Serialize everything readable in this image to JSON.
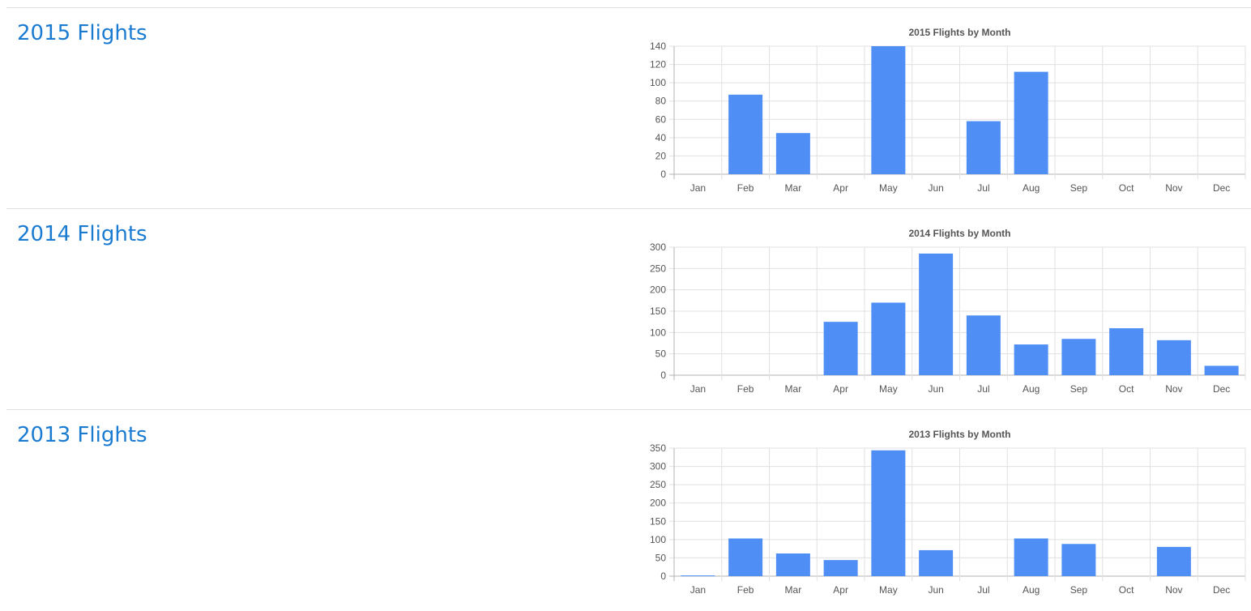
{
  "sections": [
    {
      "title": "2015 Flights"
    },
    {
      "title": "2014 Flights"
    },
    {
      "title": "2013 Flights"
    }
  ],
  "colors": {
    "bar": "#4f8ff5",
    "title_text": "#1a7bd0",
    "grid": "#e1e1e1",
    "axis": "#b3b3b3",
    "tick_text": "#555555",
    "chart_title_text": "#555555"
  },
  "chart_data": [
    {
      "type": "bar",
      "title": "2015 Flights by Month",
      "categories": [
        "Jan",
        "Feb",
        "Mar",
        "Apr",
        "May",
        "Jun",
        "Jul",
        "Aug",
        "Sep",
        "Oct",
        "Nov",
        "Dec"
      ],
      "values": [
        0,
        87,
        45,
        0,
        140,
        0,
        58,
        112,
        0,
        0,
        0,
        0
      ],
      "ylim": [
        0,
        140
      ],
      "yticks": [
        0,
        20,
        40,
        60,
        80,
        100,
        120,
        140
      ],
      "xlabel": "",
      "ylabel": "",
      "grid": true,
      "legend": "none"
    },
    {
      "type": "bar",
      "title": "2014 Flights by Month",
      "categories": [
        "Jan",
        "Feb",
        "Mar",
        "Apr",
        "May",
        "Jun",
        "Jul",
        "Aug",
        "Sep",
        "Oct",
        "Nov",
        "Dec"
      ],
      "values": [
        0,
        0,
        0,
        125,
        170,
        285,
        140,
        72,
        85,
        110,
        82,
        22
      ],
      "ylim": [
        0,
        300
      ],
      "yticks": [
        0,
        50,
        100,
        150,
        200,
        250,
        300
      ],
      "xlabel": "",
      "ylabel": "",
      "grid": true,
      "legend": "none"
    },
    {
      "type": "bar",
      "title": "2013 Flights by Month",
      "categories": [
        "Jan",
        "Feb",
        "Mar",
        "Apr",
        "May",
        "Jun",
        "Jul",
        "Aug",
        "Sep",
        "Oct",
        "Nov",
        "Dec"
      ],
      "values": [
        2,
        103,
        62,
        44,
        344,
        71,
        0,
        103,
        88,
        0,
        80,
        0
      ],
      "ylim": [
        0,
        350
      ],
      "yticks": [
        0,
        50,
        100,
        150,
        200,
        250,
        300,
        350
      ],
      "xlabel": "",
      "ylabel": "",
      "grid": true,
      "legend": "none"
    }
  ]
}
